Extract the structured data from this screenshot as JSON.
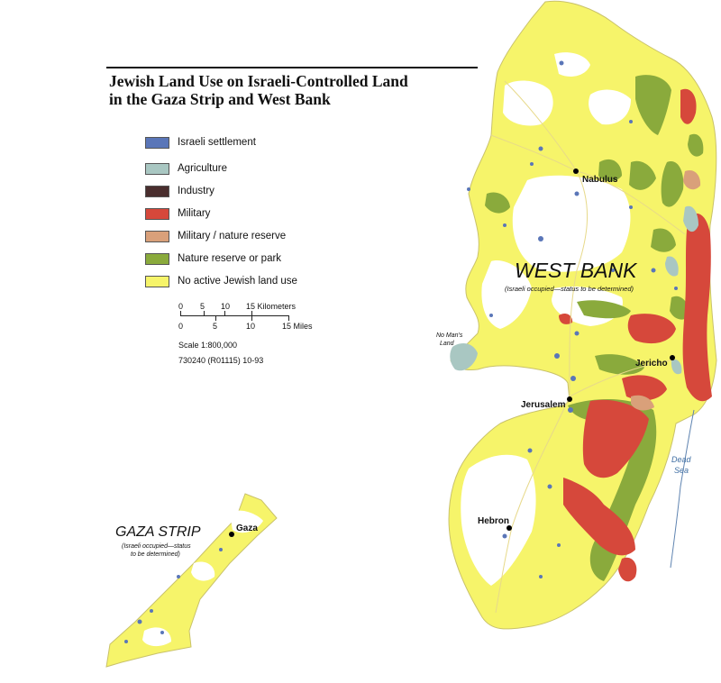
{
  "title_line1": "Jewish Land Use on Israeli-Controlled Land",
  "title_line2": "in the Gaza Strip and West Bank",
  "legend": [
    {
      "label": "Israeli settlement",
      "color": "#5a76b8"
    },
    {
      "label": "Agriculture",
      "color": "#a9c7c2"
    },
    {
      "label": "Industry",
      "color": "#4a2e2e"
    },
    {
      "label": "Military",
      "color": "#d6483b"
    },
    {
      "label": "Military / nature reserve",
      "color": "#d9a07a"
    },
    {
      "label": "Nature reserve or park",
      "color": "#8aaa3c"
    },
    {
      "label": "No active Jewish land use",
      "color": "#f6f46a"
    }
  ],
  "scale": {
    "km_ticks": [
      "0",
      "5",
      "10",
      "15 Kilometers"
    ],
    "mile_ticks": [
      "0",
      "5",
      "10",
      "15 Miles"
    ],
    "ratio": "Scale 1:800,000"
  },
  "map_code": "730240 (R01115) 10-93",
  "regions": {
    "west_bank": {
      "name": "WEST BANK",
      "status": "(Israeli occupied—status to be determined)"
    },
    "gaza_strip": {
      "name": "GAZA STRIP",
      "status_line1": "(Israeli occupied—status",
      "status_line2": "to be determined)"
    }
  },
  "cities": [
    "Nabulus",
    "Jericho",
    "Jerusalem",
    "Hebron",
    "Gaza"
  ],
  "labels": {
    "no_mans_land_1": "No Man's",
    "no_mans_land_2": "Land",
    "dead_sea_1": "Dead",
    "dead_sea_2": "Sea"
  }
}
